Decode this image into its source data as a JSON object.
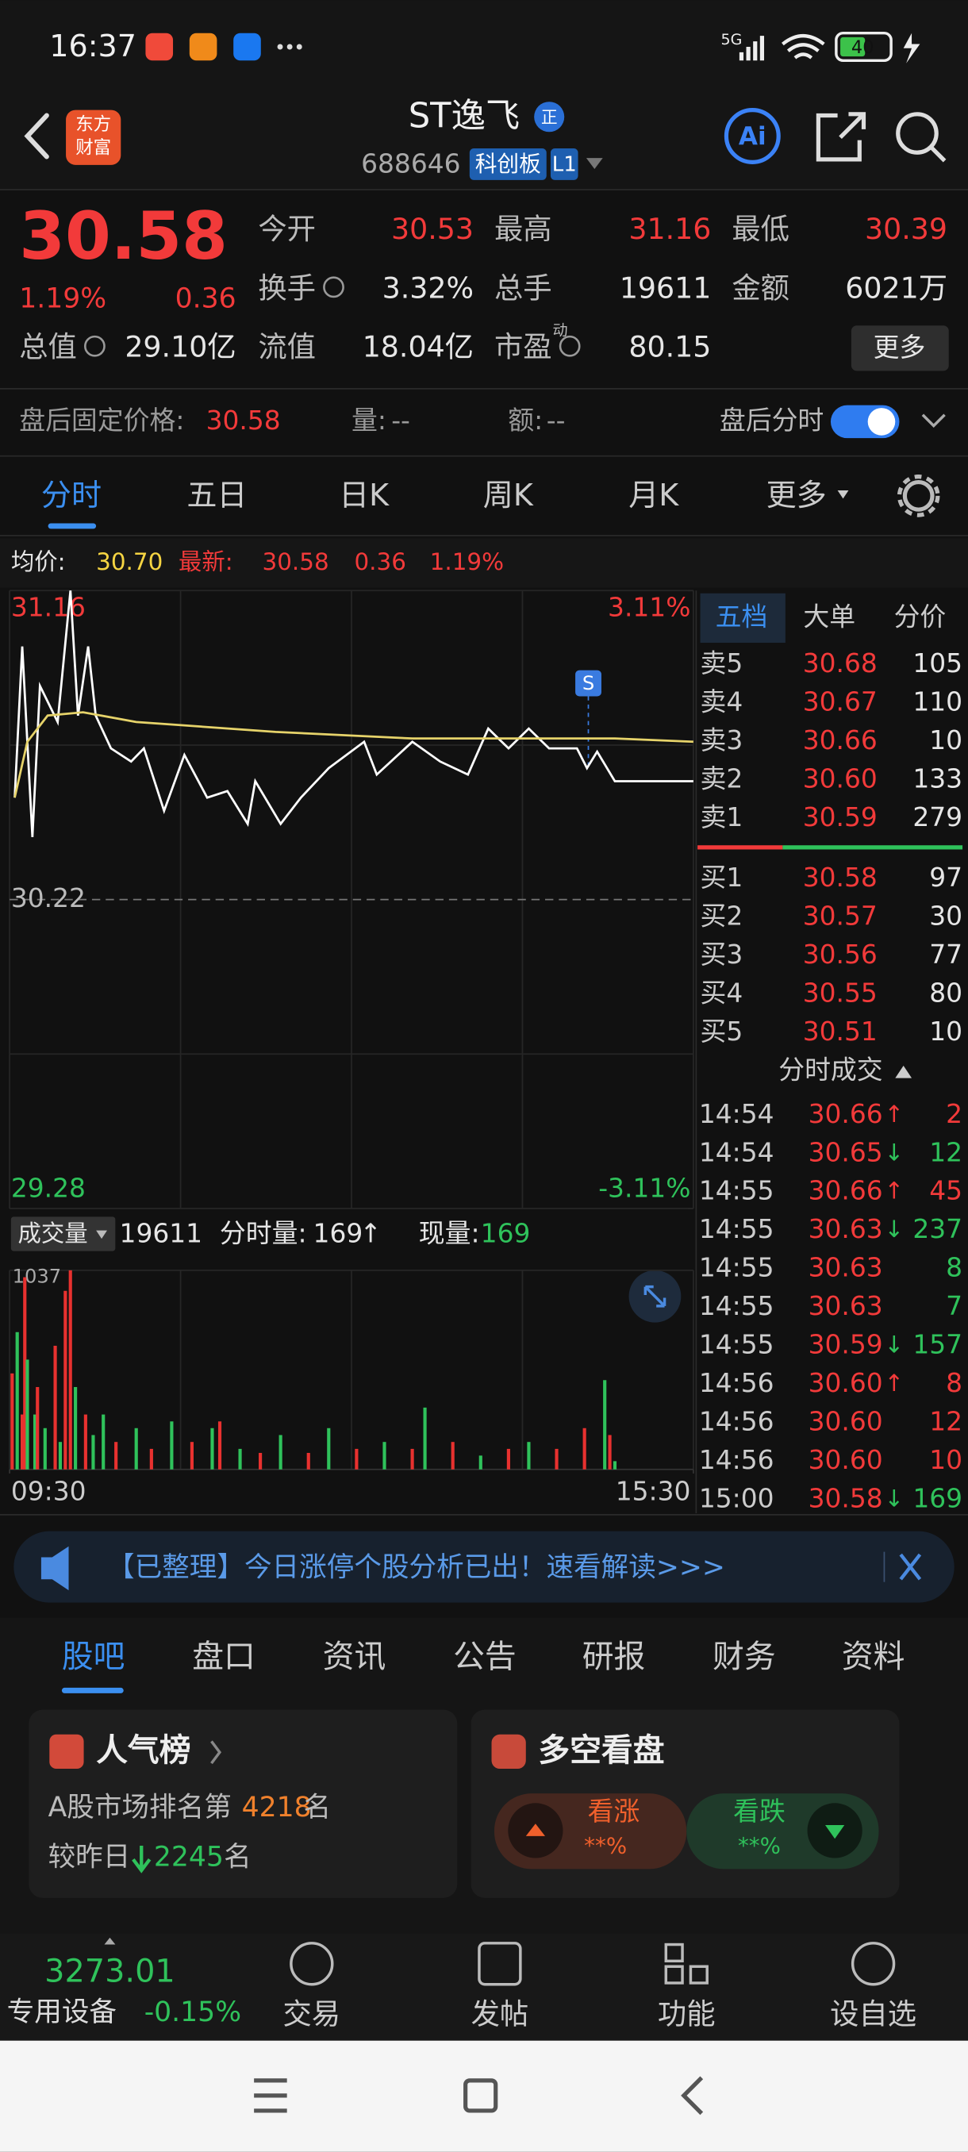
{
  "status_bar": {
    "time": "16:37",
    "network": "5G",
    "battery": "40"
  },
  "header": {
    "logo": [
      "东方",
      "财富"
    ],
    "name": "ST逸飞",
    "badge": "正",
    "code": "688646",
    "board": "科创板",
    "level": "L1",
    "ai": "Ai"
  },
  "quote": {
    "price": "30.58",
    "change_pct": "1.19%",
    "change": "0.36",
    "fields": [
      {
        "label": "今开",
        "value": "30.53"
      },
      {
        "label": "最高",
        "value": "31.16"
      },
      {
        "label": "最低",
        "value": "30.39"
      },
      {
        "label": "换手",
        "value": "3.32%"
      },
      {
        "label": "总手",
        "value": "19611"
      },
      {
        "label": "金额",
        "value": "6021万"
      },
      {
        "label": "总值",
        "value": "29.10亿"
      },
      {
        "label": "流值",
        "value": "18.04亿"
      },
      {
        "label": "市盈",
        "value": "80.15",
        "note": "动"
      }
    ],
    "more": "更多"
  },
  "after_hours": {
    "label": "盘后固定价格:",
    "price": "30.58",
    "volume_label": "量:",
    "volume": "--",
    "amount_label": "额:",
    "amount": "--",
    "toggle": "盘后分时"
  },
  "tabs": [
    "分时",
    "五日",
    "日K",
    "周K",
    "月K",
    "更多"
  ],
  "chart_info": {
    "avg_label": "均价:",
    "avg": "30.70",
    "latest_label": "最新:",
    "latest": "30.58",
    "change": "0.36",
    "pct": "1.19%"
  },
  "chart_data": [
    {
      "type": "line",
      "xlim": [
        0,
        270
      ],
      "ylim": [
        29.28,
        31.16
      ],
      "yticks": [
        31.16,
        30.22,
        29.28
      ],
      "y2lim": [
        -3.11,
        3.11
      ],
      "y2ticks": [
        {
          "value": 3.11,
          "label": "3.11%"
        },
        {
          "value": -3.11,
          "label": "-3.11%"
        }
      ],
      "grid": true,
      "series": [
        {
          "color": "#ffffff",
          "x": [
            2,
            5,
            9,
            12,
            19,
            24,
            27,
            31,
            34,
            40,
            48,
            53,
            61,
            69,
            78,
            86,
            94,
            97,
            107,
            115,
            126,
            140,
            145,
            159,
            170,
            181,
            189,
            197,
            205,
            213,
            224,
            228,
            232,
            239,
            270
          ],
          "values": [
            30.53,
            30.99,
            30.41,
            30.87,
            30.76,
            31.16,
            30.78,
            30.99,
            30.78,
            30.68,
            30.64,
            30.68,
            30.49,
            30.66,
            30.53,
            30.55,
            30.45,
            30.58,
            30.45,
            30.53,
            30.62,
            30.7,
            30.6,
            30.7,
            30.64,
            30.6,
            30.74,
            30.68,
            30.74,
            30.68,
            30.68,
            30.62,
            30.67,
            30.58,
            30.58
          ]
        },
        {
          "color": "#e6d36a",
          "x": [
            2,
            7,
            15,
            29,
            50,
            105,
            159,
            239,
            270
          ],
          "values": [
            30.53,
            30.7,
            30.78,
            30.79,
            30.76,
            30.73,
            30.71,
            30.71,
            30.7
          ]
        }
      ]
    },
    {
      "type": "bar",
      "header": {
        "label": "成交量",
        "total": "19611",
        "interval_label": "分时量:",
        "interval": "169",
        "interval_dir": "↑",
        "current_label": "现量:",
        "current": "169"
      },
      "xlim": [
        0,
        270
      ],
      "xticks": [
        {
          "value": 0,
          "label": "09:30"
        },
        {
          "value": 270,
          "label": "15:30"
        }
      ],
      "ylim": [
        0,
        1037
      ],
      "yticks": [
        1037
      ],
      "x": [
        1,
        3,
        5,
        6,
        7,
        10,
        11,
        14,
        18,
        20,
        22,
        24,
        26,
        30,
        33,
        37,
        42,
        50,
        56,
        64,
        72,
        80,
        83,
        91,
        99,
        107,
        118,
        126,
        137,
        148,
        159,
        164,
        175,
        186,
        197,
        205,
        216,
        227,
        235,
        237,
        239
      ],
      "values": [
        500,
        715,
        286,
        1001,
        572,
        286,
        429,
        215,
        644,
        143,
        930,
        1037,
        429,
        286,
        179,
        286,
        143,
        215,
        107,
        250,
        143,
        215,
        250,
        107,
        86,
        179,
        86,
        215,
        107,
        143,
        107,
        322,
        143,
        72,
        107,
        143,
        107,
        215,
        465,
        179,
        43
      ],
      "colors": [
        "#e8312f",
        "#2fc25b",
        "#e8312f",
        "#e8312f",
        "#2fc25b",
        "#2fc25b",
        "#e8312f",
        "#2fc25b",
        "#e8312f",
        "#2fc25b",
        "#e8312f",
        "#e8312f",
        "#2fc25b",
        "#e8312f",
        "#2fc25b",
        "#2fc25b",
        "#e8312f",
        "#2fc25b",
        "#e8312f",
        "#2fc25b",
        "#e8312f",
        "#2fc25b",
        "#e8312f",
        "#2fc25b",
        "#e8312f",
        "#2fc25b",
        "#e8312f",
        "#2fc25b",
        "#e8312f",
        "#2fc25b",
        "#e8312f",
        "#2fc25b",
        "#e8312f",
        "#2fc25b",
        "#e8312f",
        "#2fc25b",
        "#e8312f",
        "#e8312f",
        "#2fc25b",
        "#e8312f",
        "#2fc25b"
      ]
    }
  ],
  "order_book": {
    "tabs": [
      "五档",
      "大单",
      "分价"
    ],
    "asks": [
      {
        "label": "卖5",
        "price": "30.68",
        "volume": "105"
      },
      {
        "label": "卖4",
        "price": "30.67",
        "volume": "110"
      },
      {
        "label": "卖3",
        "price": "30.66",
        "volume": "10"
      },
      {
        "label": "卖2",
        "price": "30.60",
        "volume": "133"
      },
      {
        "label": "卖1",
        "price": "30.59",
        "volume": "279"
      }
    ],
    "bids": [
      {
        "label": "买1",
        "price": "30.58",
        "volume": "97"
      },
      {
        "label": "买2",
        "price": "30.57",
        "volume": "30"
      },
      {
        "label": "买3",
        "price": "30.56",
        "volume": "77"
      },
      {
        "label": "买4",
        "price": "30.55",
        "volume": "80"
      },
      {
        "label": "买5",
        "price": "30.51",
        "volume": "10"
      }
    ]
  },
  "trades": {
    "title": "分时成交",
    "rows": [
      {
        "time": "14:54",
        "price": "30.66",
        "dir": "↑",
        "volume": "2",
        "color": "#f23a3a"
      },
      {
        "time": "14:54",
        "price": "30.65",
        "dir": "↓",
        "volume": "12",
        "color": "#2fc25b"
      },
      {
        "time": "14:55",
        "price": "30.66",
        "dir": "↑",
        "volume": "45",
        "color": "#f23a3a"
      },
      {
        "time": "14:55",
        "price": "30.63",
        "dir": "↓",
        "volume": "237",
        "color": "#2fc25b"
      },
      {
        "time": "14:55",
        "price": "30.63",
        "volume": "8",
        "color": "#2fc25b"
      },
      {
        "time": "14:55",
        "price": "30.63",
        "volume": "7",
        "color": "#2fc25b"
      },
      {
        "time": "14:55",
        "price": "30.59",
        "dir": "↓",
        "volume": "157",
        "color": "#2fc25b"
      },
      {
        "time": "14:56",
        "price": "30.60",
        "dir": "↑",
        "volume": "8",
        "color": "#f23a3a"
      },
      {
        "time": "14:56",
        "price": "30.60",
        "volume": "12",
        "color": "#f23a3a"
      },
      {
        "time": "14:56",
        "price": "30.60",
        "volume": "10",
        "color": "#f23a3a"
      },
      {
        "time": "15:00",
        "price": "30.58",
        "dir": "↓",
        "volume": "169",
        "color": "#2fc25b"
      }
    ]
  },
  "banner": "【已整理】今日涨停个股分析已出！速看解读>>>",
  "section_tabs": [
    "股吧",
    "盘口",
    "资讯",
    "公告",
    "研报",
    "财务",
    "资料"
  ],
  "popularity": {
    "title": "人气榜",
    "rank_prefix": "A股市场排名第",
    "rank": "4218",
    "rank_suffix": "名",
    "change_prefix": "较昨日",
    "change": "2245",
    "change_suffix": "名"
  },
  "sentiment": {
    "title": "多空看盘",
    "bull": "看涨",
    "bull_pct": "**%",
    "bear": "看跌",
    "bear_pct": "**%"
  },
  "bottom_bar": {
    "index": "3273.01",
    "sector": "专用设备",
    "sector_change": "-0.15%",
    "nav": [
      "交易",
      "发帖",
      "功能",
      "设自选"
    ]
  }
}
